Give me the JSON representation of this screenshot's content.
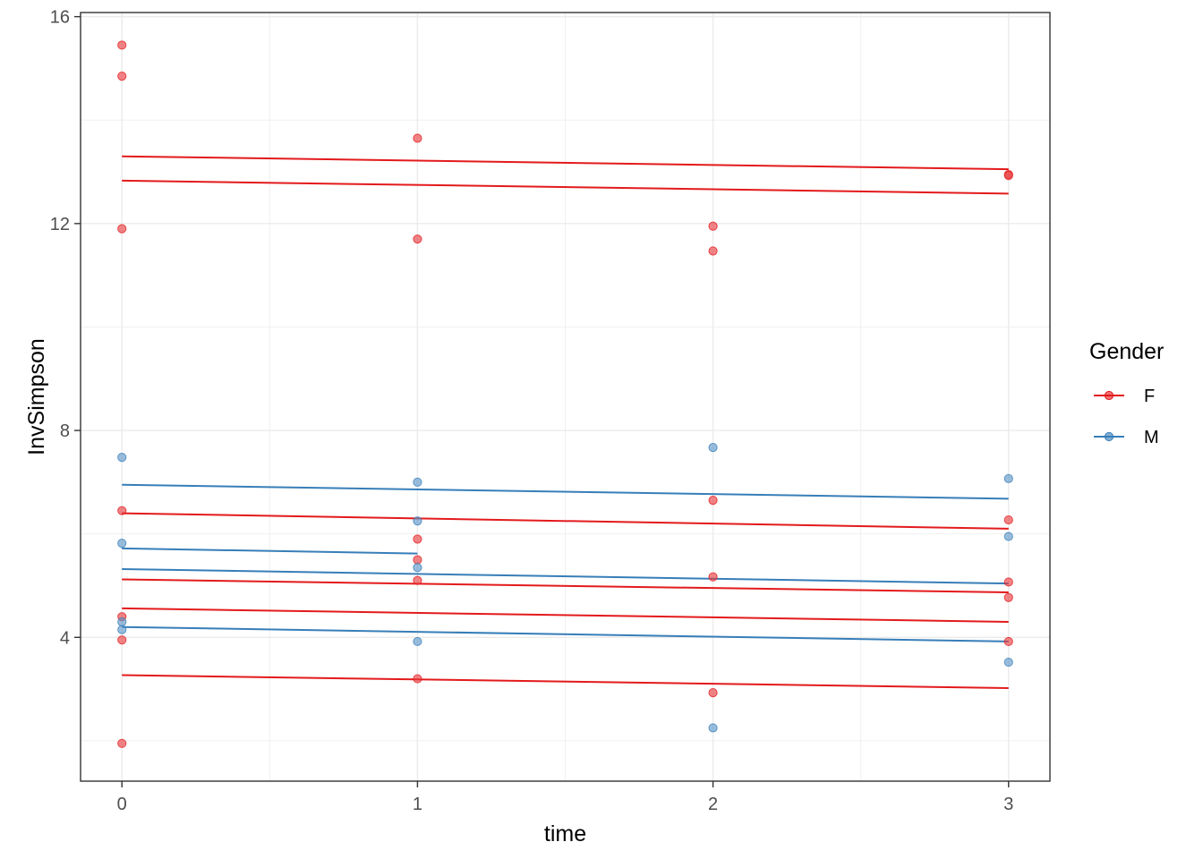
{
  "chart_data": {
    "type": "scatter",
    "title": "",
    "xlabel": "time",
    "ylabel": "InvSimpson",
    "xlim": [
      -0.14,
      3.14
    ],
    "ylim": [
      1.22,
      16.08
    ],
    "x_ticks": [
      0,
      1,
      2,
      3
    ],
    "x_tick_labels": [
      "0",
      "1",
      "2",
      "3"
    ],
    "y_ticks": [
      4,
      8,
      12,
      16
    ],
    "y_tick_labels": [
      "4",
      "8",
      "12",
      "16"
    ],
    "grid": true,
    "legend": {
      "title": "Gender",
      "position": "right",
      "entries": [
        {
          "label": "F",
          "color": "#e31a1c"
        },
        {
          "label": "M",
          "color": "#377eb8"
        }
      ]
    },
    "series": [
      {
        "name": "F",
        "color": "#e31a1c",
        "point_color": "#e8383b",
        "points": [
          [
            0,
            15.45
          ],
          [
            0,
            14.85
          ],
          [
            0,
            11.9
          ],
          [
            0,
            6.45
          ],
          [
            0,
            4.4
          ],
          [
            0,
            3.95
          ],
          [
            0,
            1.95
          ],
          [
            1,
            13.65
          ],
          [
            1,
            11.7
          ],
          [
            1,
            5.9
          ],
          [
            1,
            5.5
          ],
          [
            1,
            5.1
          ],
          [
            1,
            3.2
          ],
          [
            2,
            11.95
          ],
          [
            2,
            11.47
          ],
          [
            2,
            6.65
          ],
          [
            2,
            5.17
          ],
          [
            2,
            2.93
          ],
          [
            3,
            12.95
          ],
          [
            3,
            12.93
          ],
          [
            3,
            6.27
          ],
          [
            3,
            5.07
          ],
          [
            3,
            4.77
          ],
          [
            3,
            3.92
          ]
        ],
        "lines": [
          {
            "from": [
              0,
              13.3
            ],
            "to": [
              3,
              13.05
            ]
          },
          {
            "from": [
              0,
              12.83
            ],
            "to": [
              3,
              12.58
            ]
          },
          {
            "from": [
              0,
              6.4
            ],
            "to": [
              3,
              6.1
            ]
          },
          {
            "from": [
              0,
              5.12
            ],
            "to": [
              3,
              4.87
            ]
          },
          {
            "from": [
              0,
              4.56
            ],
            "to": [
              3,
              4.3
            ]
          },
          {
            "from": [
              0,
              3.27
            ],
            "to": [
              3,
              3.02
            ]
          }
        ]
      },
      {
        "name": "M",
        "color": "#377eb8",
        "point_color": "#5b95c6",
        "points": [
          [
            0,
            7.48
          ],
          [
            0,
            5.82
          ],
          [
            0,
            4.3
          ],
          [
            0,
            4.15
          ],
          [
            1,
            7.0
          ],
          [
            1,
            6.25
          ],
          [
            1,
            5.35
          ],
          [
            1,
            3.92
          ],
          [
            2,
            7.67
          ],
          [
            2,
            2.25
          ],
          [
            3,
            7.07
          ],
          [
            3,
            5.95
          ],
          [
            3,
            3.52
          ]
        ],
        "lines": [
          {
            "from": [
              0,
              6.95
            ],
            "to": [
              3,
              6.68
            ]
          },
          {
            "from": [
              0,
              5.72
            ],
            "to": [
              1,
              5.62
            ]
          },
          {
            "from": [
              0,
              5.32
            ],
            "to": [
              3,
              5.04
            ]
          },
          {
            "from": [
              0,
              4.2
            ],
            "to": [
              3,
              3.92
            ]
          }
        ]
      }
    ]
  }
}
